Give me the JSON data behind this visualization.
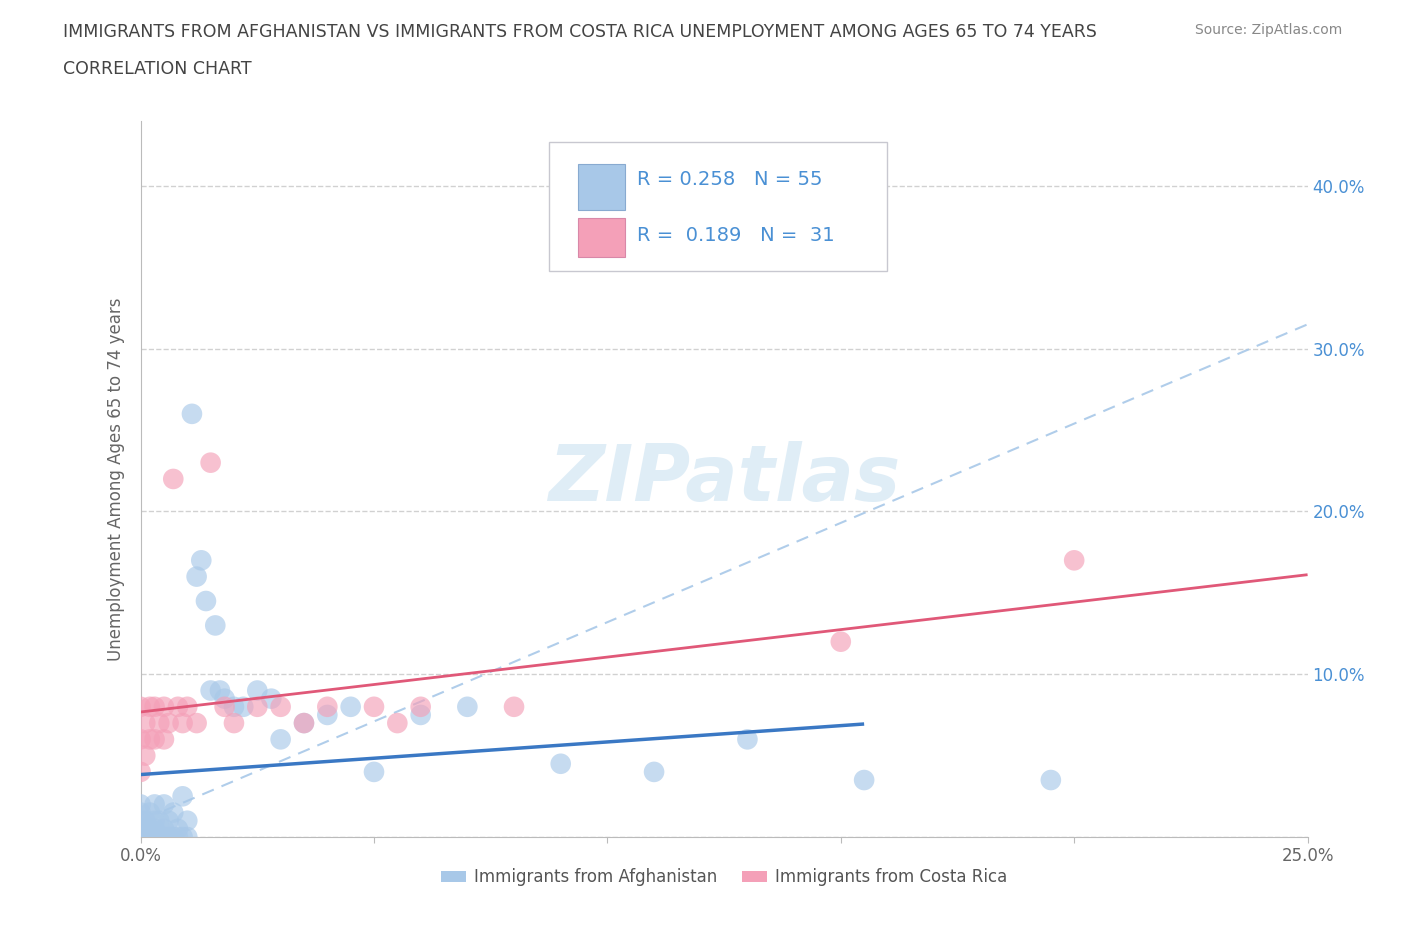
{
  "title_line1": "IMMIGRANTS FROM AFGHANISTAN VS IMMIGRANTS FROM COSTA RICA UNEMPLOYMENT AMONG AGES 65 TO 74 YEARS",
  "title_line2": "CORRELATION CHART",
  "source_text": "Source: ZipAtlas.com",
  "ylabel": "Unemployment Among Ages 65 to 74 years",
  "xlim": [
    0.0,
    0.25
  ],
  "ylim": [
    0.0,
    0.44
  ],
  "afghanistan_color": "#a8c8e8",
  "costa_rica_color": "#f4a0b8",
  "afghanistan_line_color": "#3a78c4",
  "costa_rica_line_color": "#e05878",
  "dashed_line_color": "#a8c8e8",
  "R_afghanistan": 0.258,
  "N_afghanistan": 55,
  "R_costa_rica": 0.189,
  "N_costa_rica": 31,
  "legend_text_color": "#4a90d4",
  "legend_box_color": "#e8e8f0",
  "grid_color": "#cccccc",
  "background_color": "#ffffff",
  "watermark": "ZIPatlas",
  "af_x": [
    0.0,
    0.0,
    0.0,
    0.0,
    0.0,
    0.0,
    0.001,
    0.001,
    0.001,
    0.002,
    0.002,
    0.002,
    0.003,
    0.003,
    0.003,
    0.003,
    0.004,
    0.004,
    0.005,
    0.005,
    0.005,
    0.006,
    0.006,
    0.007,
    0.007,
    0.008,
    0.008,
    0.009,
    0.009,
    0.01,
    0.01,
    0.011,
    0.012,
    0.013,
    0.014,
    0.015,
    0.016,
    0.017,
    0.018,
    0.02,
    0.022,
    0.025,
    0.028,
    0.03,
    0.035,
    0.04,
    0.045,
    0.05,
    0.06,
    0.07,
    0.09,
    0.11,
    0.13,
    0.155,
    0.195
  ],
  "af_y": [
    0.0,
    0.0,
    0.005,
    0.01,
    0.015,
    0.02,
    0.0,
    0.005,
    0.01,
    0.0,
    0.005,
    0.015,
    0.0,
    0.005,
    0.01,
    0.02,
    0.0,
    0.01,
    0.0,
    0.005,
    0.02,
    0.0,
    0.01,
    0.0,
    0.015,
    0.0,
    0.005,
    0.0,
    0.025,
    0.0,
    0.01,
    0.26,
    0.16,
    0.17,
    0.145,
    0.09,
    0.13,
    0.09,
    0.085,
    0.08,
    0.08,
    0.09,
    0.085,
    0.06,
    0.07,
    0.075,
    0.08,
    0.04,
    0.075,
    0.08,
    0.045,
    0.04,
    0.06,
    0.035,
    0.035
  ],
  "cr_x": [
    0.0,
    0.0,
    0.0,
    0.001,
    0.001,
    0.002,
    0.002,
    0.003,
    0.003,
    0.004,
    0.005,
    0.005,
    0.006,
    0.007,
    0.008,
    0.009,
    0.01,
    0.012,
    0.015,
    0.018,
    0.02,
    0.025,
    0.03,
    0.035,
    0.04,
    0.05,
    0.055,
    0.06,
    0.08,
    0.15,
    0.2
  ],
  "cr_y": [
    0.04,
    0.06,
    0.08,
    0.05,
    0.07,
    0.06,
    0.08,
    0.06,
    0.08,
    0.07,
    0.06,
    0.08,
    0.07,
    0.22,
    0.08,
    0.07,
    0.08,
    0.07,
    0.23,
    0.08,
    0.07,
    0.08,
    0.08,
    0.07,
    0.08,
    0.08,
    0.07,
    0.08,
    0.08,
    0.12,
    0.17
  ]
}
